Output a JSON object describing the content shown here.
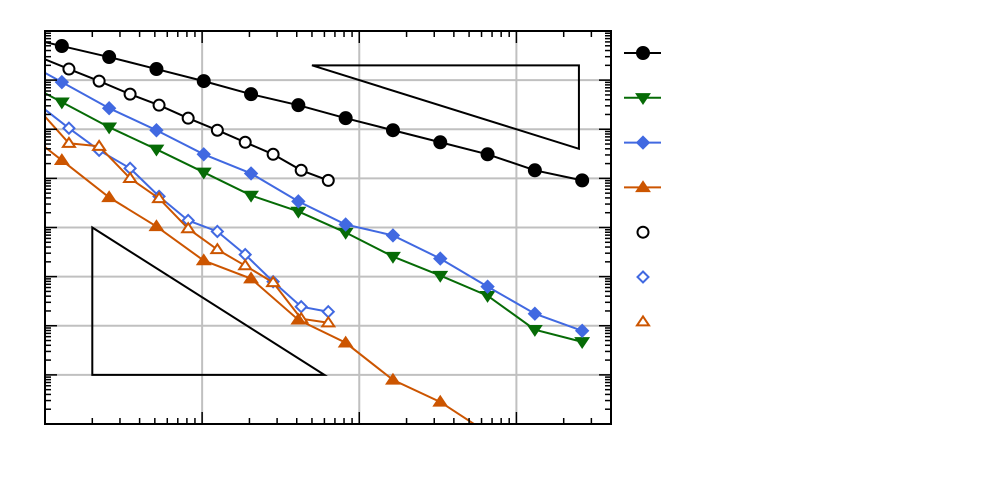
{
  "chart_data": {
    "type": "line",
    "title": "",
    "xlabel": "",
    "ylabel": "",
    "xscale": "log",
    "yscale": "log",
    "xlim": [
      1,
      4000
    ],
    "ylim": [
      1e-08,
      1
    ],
    "grid": true,
    "legend_placement": "right-outside",
    "series": [
      {
        "marker": "circle",
        "filled": true,
        "line": true,
        "color": "#000000",
        "x": [
          0.64,
          1.28,
          2.56,
          5.12,
          10.24,
          20.48,
          40.96,
          81.92,
          163.84,
          327.68,
          655.36,
          1310.72,
          2621.44
        ],
        "y": [
          0.83,
          0.494,
          0.295,
          0.168,
          0.0955,
          0.0518,
          0.0309,
          0.0168,
          0.00955,
          0.00543,
          0.00309,
          0.00146,
          0.00091
        ]
      },
      {
        "marker": "triangle-down",
        "filled": true,
        "line": true,
        "color": "#066b06",
        "x": [
          0.64,
          1.28,
          2.56,
          5.12,
          10.24,
          20.48,
          40.96,
          81.92,
          163.84,
          327.68,
          655.36,
          1310.72,
          2621.44
        ],
        "y": [
          0.115,
          0.0356,
          0.011,
          0.00391,
          0.00133,
          0.00045,
          0.000212,
          7.9e-05,
          2.56e-05,
          1.05e-05,
          4.09e-06,
          8.3e-07,
          4.7e-07
        ]
      },
      {
        "marker": "diamond",
        "filled": true,
        "line": true,
        "color": "#4169e1",
        "x": [
          0.64,
          1.28,
          2.56,
          5.12,
          10.24,
          20.48,
          40.96,
          81.92,
          163.84,
          327.68,
          655.36,
          1310.72,
          2621.44
        ],
        "y": [
          0.309,
          0.091,
          0.0268,
          0.00955,
          0.00309,
          0.00126,
          0.00034,
          0.000115,
          6.9e-05,
          2.33e-05,
          6.25e-06,
          1.76e-06,
          7.9e-07
        ]
      },
      {
        "marker": "triangle-up",
        "filled": true,
        "line": true,
        "color": "#cc5500",
        "x": [
          0.64,
          1.28,
          2.56,
          5.12,
          10.24,
          20.48,
          40.96,
          81.92,
          163.84,
          327.68,
          655.36
        ],
        "y": [
          0.0133,
          0.00233,
          0.00041,
          0.000105,
          2.12e-05,
          9.1e-06,
          1.32e-06,
          4.5e-07,
          7.9e-08,
          2.81e-08,
          6.6e-09
        ]
      },
      {
        "marker": "circle",
        "filled": false,
        "line": true,
        "color": "#000000",
        "x": [
          0.92,
          1.42,
          2.21,
          3.48,
          5.32,
          8.15,
          12.5,
          18.8,
          28.3,
          42.7,
          63.5
        ],
        "y": [
          0.295,
          0.168,
          0.0955,
          0.0518,
          0.0309,
          0.0168,
          0.00955,
          0.00543,
          0.00309,
          0.00146,
          0.00091
        ]
      },
      {
        "marker": "diamond",
        "filled": false,
        "line": true,
        "color": "#4169e1",
        "x": [
          0.92,
          1.42,
          2.21,
          3.48,
          5.32,
          8.15,
          12.5,
          18.8,
          28.3,
          42.7,
          63.5
        ],
        "y": [
          0.031,
          0.0105,
          0.00372,
          0.0016,
          0.00043,
          0.000139,
          8.3e-05,
          2.81e-05,
          7.9e-06,
          2.44e-06,
          1.93e-06
        ]
      },
      {
        "marker": "triangle-up",
        "filled": false,
        "line": true,
        "color": "#cc5500",
        "x": [
          0.92,
          1.42,
          2.21,
          3.48,
          5.32,
          8.15,
          12.5,
          18.8,
          28.3,
          42.7,
          63.5
        ],
        "y": [
          0.0244,
          0.00518,
          0.0045,
          0.001,
          0.00039,
          9.5e-05,
          3.56e-05,
          1.67e-05,
          7.6e-06,
          1.39e-06,
          1.15e-06
        ]
      }
    ],
    "legend_entries": [
      {
        "series": 0,
        "line": true
      },
      {
        "series": 1,
        "line": true
      },
      {
        "series": 2,
        "line": true
      },
      {
        "series": 3,
        "line": true
      },
      {
        "series": 4,
        "line": false
      },
      {
        "series": 5,
        "line": false
      },
      {
        "series": 6,
        "line": false
      }
    ],
    "annotations": [
      {
        "type": "slope-triangle",
        "slope": -1,
        "points": [
          [
            50,
            0.2
          ],
          [
            2500,
            0.2
          ],
          [
            2500,
            0.004
          ]
        ]
      },
      {
        "type": "slope-triangle",
        "slope": -2,
        "points": [
          [
            2,
            0.0001
          ],
          [
            2,
            1e-07
          ],
          [
            60,
            1e-07
          ]
        ]
      }
    ],
    "grid_color": "#c0c0c0"
  }
}
